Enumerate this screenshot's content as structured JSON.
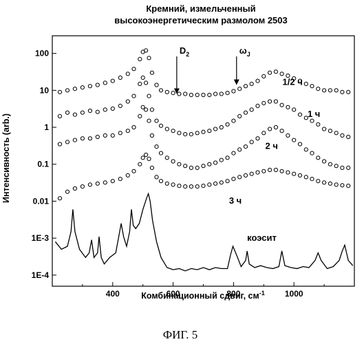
{
  "figure": {
    "title_lines": [
      "Кремний, измельченный",
      "высокоэнергетическим размолом 2503"
    ],
    "caption": "ФИГ. 5"
  },
  "chart_data": {
    "type": "scatter",
    "xlabel": "Комбинационный сдвиг, см",
    "xlabel_sup": "-1",
    "ylabel": "Интенсивность (arb.)",
    "y_scale": "log",
    "xlim": [
      200,
      1200
    ],
    "ylim": [
      5e-05,
      300
    ],
    "x_ticks": [
      {
        "value": 400,
        "label": "400"
      },
      {
        "value": 600,
        "label": "600"
      },
      {
        "value": 800,
        "label": "800"
      },
      {
        "value": 1000,
        "label": "1000"
      }
    ],
    "y_ticks": [
      {
        "value": 100,
        "label": "100"
      },
      {
        "value": 10,
        "label": "10"
      },
      {
        "value": 1,
        "label": "1"
      },
      {
        "value": 0.1,
        "label": "0.1"
      },
      {
        "value": 0.01,
        "label": "0.01"
      },
      {
        "value": 0.001,
        "label": "1E-3"
      },
      {
        "value": 0.0001,
        "label": "1E-4"
      }
    ],
    "grid": false,
    "annotations": [
      {
        "text": "D",
        "sub": "2",
        "x": 612,
        "arrow_to_y": 8
      },
      {
        "text": "ω",
        "sub": "J",
        "x": 810,
        "arrow_to_y": 14
      }
    ],
    "series": [
      {
        "name": "1/2 ч",
        "marker": "open-circle",
        "color": "#000000",
        "x": [
          225,
          250,
          275,
          300,
          325,
          350,
          375,
          400,
          425,
          450,
          470,
          490,
          500,
          510,
          520,
          530,
          545,
          560,
          580,
          600,
          620,
          640,
          660,
          680,
          700,
          720,
          740,
          760,
          780,
          800,
          820,
          840,
          860,
          880,
          900,
          920,
          940,
          960,
          980,
          1000,
          1020,
          1040,
          1060,
          1080,
          1100,
          1120,
          1140,
          1160,
          1180
        ],
        "y": [
          9,
          10,
          11,
          12,
          13,
          14,
          16,
          18,
          22,
          28,
          38,
          70,
          110,
          120,
          75,
          30,
          14,
          10,
          9,
          8.5,
          8,
          8,
          7.5,
          7.5,
          7.5,
          7.5,
          8,
          8,
          8.5,
          9.5,
          11,
          13,
          15,
          18,
          24,
          30,
          32,
          28,
          25,
          21,
          18,
          15,
          13,
          11,
          10,
          10,
          10,
          9,
          9
        ]
      },
      {
        "name": "1 ч",
        "marker": "open-circle",
        "color": "#000000",
        "x": [
          225,
          250,
          275,
          300,
          325,
          350,
          375,
          400,
          425,
          450,
          470,
          490,
          500,
          510,
          520,
          530,
          545,
          560,
          580,
          600,
          620,
          640,
          660,
          680,
          700,
          720,
          740,
          760,
          780,
          800,
          820,
          840,
          860,
          880,
          900,
          920,
          940,
          960,
          980,
          1000,
          1020,
          1040,
          1060,
          1080,
          1100,
          1120,
          1140,
          1160,
          1180
        ],
        "y": [
          2,
          2.5,
          2.2,
          2.5,
          2.8,
          2.6,
          3,
          3.2,
          3.8,
          5,
          7,
          15,
          22,
          16,
          7,
          3,
          1.5,
          1.1,
          0.9,
          0.8,
          0.7,
          0.65,
          0.65,
          0.7,
          0.75,
          0.8,
          0.9,
          1,
          1.2,
          1.5,
          2,
          2.5,
          3,
          3.8,
          4.5,
          5,
          5,
          4,
          3.5,
          3,
          2.2,
          1.8,
          1.5,
          1.2,
          0.9,
          0.8,
          0.7,
          0.6,
          0.55
        ]
      },
      {
        "name": "2 ч",
        "marker": "open-circle",
        "color": "#000000",
        "x": [
          225,
          250,
          275,
          300,
          325,
          350,
          375,
          400,
          425,
          450,
          470,
          490,
          500,
          510,
          520,
          530,
          545,
          560,
          580,
          600,
          620,
          640,
          660,
          680,
          700,
          720,
          740,
          760,
          780,
          800,
          820,
          840,
          860,
          880,
          900,
          920,
          940,
          960,
          980,
          1000,
          1020,
          1040,
          1060,
          1080,
          1100,
          1120,
          1140,
          1160,
          1180
        ],
        "y": [
          0.35,
          0.4,
          0.45,
          0.5,
          0.5,
          0.55,
          0.6,
          0.6,
          0.7,
          0.8,
          1,
          2,
          3.5,
          3,
          1.5,
          0.6,
          0.3,
          0.2,
          0.15,
          0.12,
          0.1,
          0.09,
          0.08,
          0.08,
          0.09,
          0.1,
          0.11,
          0.13,
          0.15,
          0.2,
          0.25,
          0.3,
          0.4,
          0.5,
          0.7,
          0.9,
          1,
          0.8,
          0.6,
          0.45,
          0.35,
          0.25,
          0.2,
          0.15,
          0.12,
          0.1,
          0.09,
          0.08,
          0.08
        ]
      },
      {
        "name": "3 ч",
        "marker": "open-circle",
        "color": "#000000",
        "x": [
          225,
          250,
          275,
          300,
          325,
          350,
          375,
          400,
          425,
          450,
          470,
          490,
          500,
          510,
          520,
          530,
          545,
          560,
          580,
          600,
          620,
          640,
          660,
          680,
          700,
          720,
          740,
          760,
          780,
          800,
          820,
          840,
          860,
          880,
          900,
          920,
          940,
          960,
          980,
          1000,
          1020,
          1040,
          1060,
          1080,
          1100,
          1120,
          1140,
          1160,
          1180
        ],
        "y": [
          0.012,
          0.018,
          0.022,
          0.025,
          0.028,
          0.03,
          0.032,
          0.035,
          0.04,
          0.05,
          0.065,
          0.1,
          0.15,
          0.18,
          0.14,
          0.08,
          0.045,
          0.035,
          0.03,
          0.028,
          0.026,
          0.025,
          0.025,
          0.025,
          0.026,
          0.028,
          0.03,
          0.032,
          0.035,
          0.04,
          0.045,
          0.05,
          0.055,
          0.06,
          0.065,
          0.07,
          0.07,
          0.065,
          0.06,
          0.055,
          0.05,
          0.045,
          0.04,
          0.035,
          0.032,
          0.03,
          0.028,
          0.027,
          0.026
        ]
      },
      {
        "name": "коэсит",
        "marker": "line",
        "color": "#000000",
        "x": [
          210,
          230,
          250,
          262,
          268,
          275,
          290,
          310,
          322,
          330,
          338,
          350,
          355,
          362,
          372,
          390,
          410,
          420,
          428,
          436,
          446,
          456,
          462,
          468,
          476,
          488,
          500,
          512,
          518,
          524,
          532,
          545,
          560,
          580,
          600,
          620,
          640,
          660,
          680,
          700,
          720,
          740,
          760,
          780,
          790,
          798,
          810,
          825,
          840,
          845,
          852,
          870,
          890,
          910,
          930,
          950,
          960,
          970,
          990,
          1010,
          1030,
          1050,
          1070,
          1080,
          1090,
          1110,
          1130,
          1150,
          1160,
          1168,
          1180,
          1195
        ],
        "y": [
          0.0008,
          0.0005,
          0.0006,
          0.0015,
          0.006,
          0.0015,
          0.0005,
          0.0003,
          0.0004,
          0.0009,
          0.0003,
          0.0004,
          0.0011,
          0.0003,
          0.0002,
          0.0003,
          0.0004,
          0.0011,
          0.0025,
          0.0011,
          0.0006,
          0.0015,
          0.006,
          0.0022,
          0.0018,
          0.0025,
          0.006,
          0.012,
          0.016,
          0.01,
          0.003,
          0.0008,
          0.0003,
          0.00016,
          0.00014,
          0.00015,
          0.00013,
          0.00015,
          0.00014,
          0.00016,
          0.00014,
          0.00016,
          0.00015,
          0.00015,
          0.00035,
          0.0006,
          0.00035,
          0.00017,
          0.00025,
          0.00045,
          0.0002,
          0.00016,
          0.00018,
          0.00016,
          0.00015,
          0.00017,
          0.00045,
          0.00018,
          0.00016,
          0.00015,
          0.00017,
          0.00016,
          0.00025,
          0.0004,
          0.00025,
          0.00015,
          0.00017,
          0.00025,
          0.00045,
          0.00065,
          0.00025,
          0.00018
        ]
      }
    ],
    "series_label_anchors": [
      {
        "x": 962,
        "y": 14
      },
      {
        "x": 1045,
        "y": 1.9
      },
      {
        "x": 905,
        "y": 0.26
      },
      {
        "x": 785,
        "y": 0.0085
      },
      {
        "x": 845,
        "y": 0.00085
      }
    ]
  }
}
